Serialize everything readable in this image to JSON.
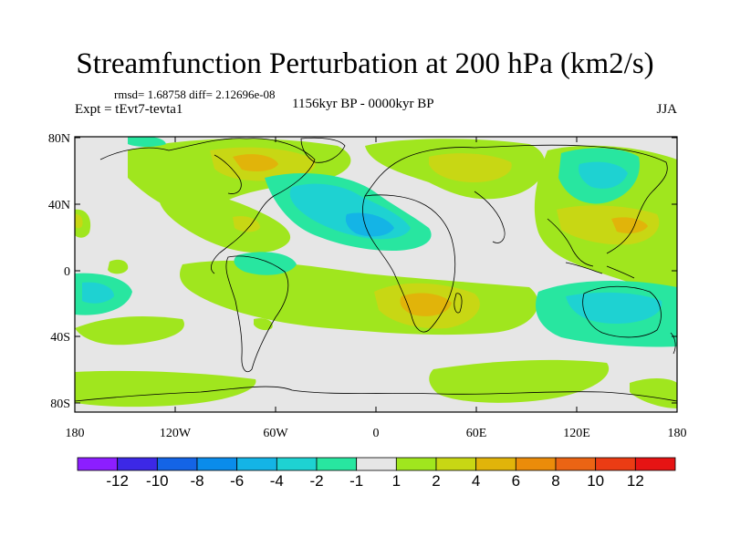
{
  "header": {
    "title": "Streamfunction Perturbation at 200 hPa (km2/s)",
    "stats": "rmsd= 1.68758 diff= 2.12696e-08",
    "experiment": "Expt = tEvt7-tevta1",
    "period": "1156kyr BP - 0000kyr BP",
    "season": "JJA"
  },
  "map": {
    "lon_ticks": [
      "180",
      "120W",
      "60W",
      "0",
      "60E",
      "120E",
      "180"
    ],
    "lat_ticks": [
      "80N",
      "40N",
      "0",
      "40S",
      "80S"
    ],
    "background_color": "#e6e6e6"
  },
  "colorbar": {
    "labels": [
      "-12",
      "-10",
      "-8",
      "-6",
      "-4",
      "-2",
      "-1",
      "1",
      "2",
      "4",
      "6",
      "8",
      "10",
      "12"
    ],
    "colors": [
      "#8c1eff",
      "#3c28e6",
      "#1464e6",
      "#0a8ceb",
      "#14b4e6",
      "#1ed2d2",
      "#28e6a0",
      "#e6e6e6",
      "#a0e61e",
      "#c8d714",
      "#e1b40a",
      "#eb8c0a",
      "#eb6414",
      "#eb3c14",
      "#e61414"
    ]
  }
}
